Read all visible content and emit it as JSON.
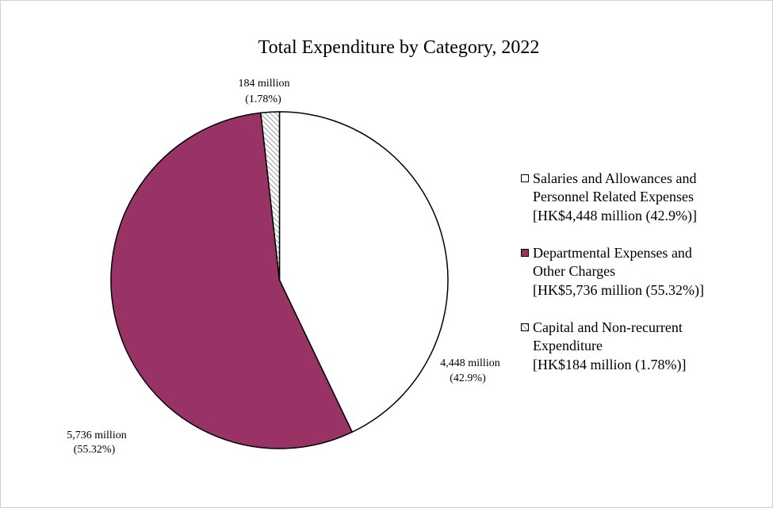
{
  "chart_data": {
    "type": "pie",
    "title": "Total Expenditure by Category, 2022",
    "legend_position": "right",
    "outline_color": "#000000",
    "slices": [
      {
        "value": 4448,
        "percent": 42.9,
        "color": "#ffffff",
        "hatch": false,
        "data_label": [
          "4,448 million",
          "(42.9%)"
        ],
        "legend": [
          "Salaries and Allowances and",
          "Personnel Related Expenses",
          "[HK$4,448 million (42.9%)]"
        ]
      },
      {
        "value": 5736,
        "percent": 55.32,
        "color": "#993366",
        "hatch": false,
        "data_label": [
          "5,736 million",
          "(55.32%)"
        ],
        "legend": [
          "Departmental Expenses and",
          "Other Charges",
          "[HK$5,736 million (55.32%)]"
        ]
      },
      {
        "value": 184,
        "percent": 1.78,
        "color": "#ffffff",
        "hatch": true,
        "hatch_color": "#808080",
        "data_label": [
          "184 million",
          "(1.78%)"
        ],
        "legend": [
          "Capital and Non-recurrent",
          "Expenditure",
          "[HK$184 million (1.78%)]"
        ]
      }
    ]
  }
}
